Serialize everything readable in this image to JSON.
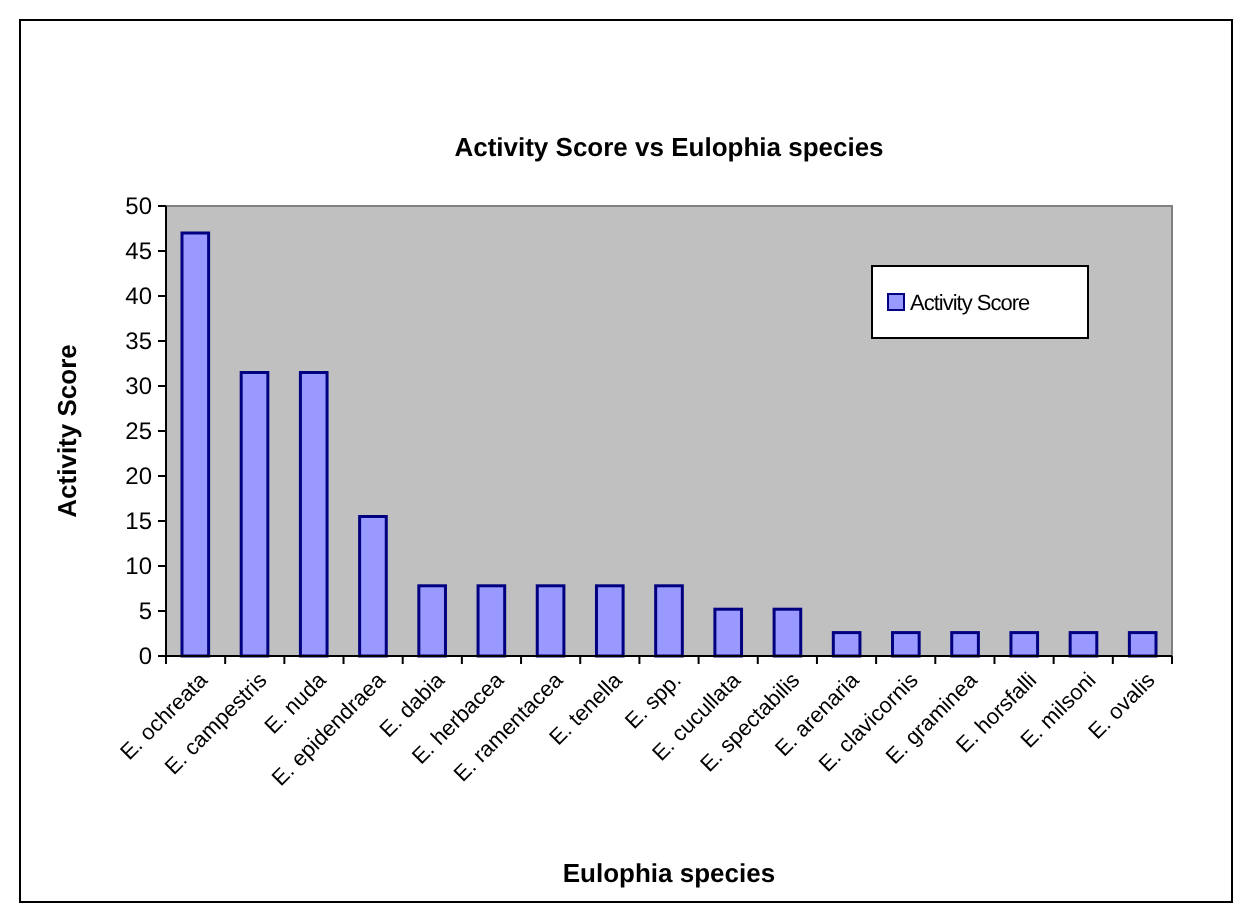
{
  "chart_data": {
    "type": "bar",
    "title": "Activity Score vs Eulophia species",
    "xlabel": "Eulophia species",
    "ylabel": "Activity Score",
    "categories": [
      "E. ochreata",
      "E. campestris",
      "E. nuda",
      "E. epidendraea",
      "E. dabia",
      "E. herbacea",
      "E. ramentacea",
      "E. tenella",
      "E. spp.",
      "E. cucullata",
      "E. spectabilis",
      "E. arenaria",
      "E. clavicornis",
      "E. graminea",
      "E. horsfalli",
      "E. milsoni",
      "E. ovalis"
    ],
    "series": [
      {
        "name": "Activity Score",
        "color": "#9999ff",
        "values": [
          47,
          31.5,
          31.5,
          15.5,
          7.8,
          7.8,
          7.8,
          7.8,
          7.8,
          5.2,
          5.2,
          2.6,
          2.6,
          2.6,
          2.6,
          2.6,
          2.6
        ]
      }
    ],
    "ylim": [
      0,
      50
    ],
    "yticks": [
      0,
      5,
      10,
      15,
      20,
      25,
      30,
      35,
      40,
      45,
      50
    ],
    "grid": false,
    "legend": "top right"
  }
}
